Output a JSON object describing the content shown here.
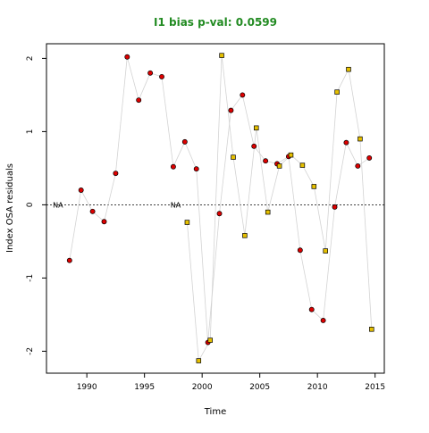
{
  "chart_data": {
    "type": "scatter",
    "title": "I1 bias p-val: 0.0599",
    "title_color": "#228B22",
    "xlabel": "Time",
    "ylabel": "Index OSA residuals",
    "xlim": [
      1986.5,
      2015.8
    ],
    "ylim": [
      -2.3,
      2.2
    ],
    "xticks": [
      1990,
      1995,
      2000,
      2005,
      2010,
      2015
    ],
    "yticks": [
      -2,
      -1,
      0,
      1,
      2
    ],
    "reference_line": 0,
    "line_color": "#d3d3d3",
    "series": [
      {
        "marker": "circle",
        "fill": "#dd0000",
        "na_label": "NA",
        "na_at": 1987.5,
        "x": [
          1988.5,
          1989.5,
          1990.5,
          1991.5,
          1992.5,
          1993.5,
          1994.5,
          1995.5,
          1996.5,
          1997.5,
          1998.5,
          1999.5,
          2000.5,
          2001.5,
          2002.5,
          2003.5,
          2004.5,
          2005.5,
          2006.5,
          2007.5,
          2008.5,
          2009.5,
          2010.5,
          2011.5,
          2012.5,
          2013.5,
          2014.5
        ],
        "y": [
          -0.76,
          0.2,
          -0.09,
          -0.23,
          0.43,
          2.02,
          1.43,
          1.8,
          1.75,
          0.52,
          0.86,
          0.49,
          -1.88,
          -0.12,
          1.29,
          1.5,
          0.8,
          0.6,
          0.56,
          0.66,
          -0.62,
          -1.43,
          -1.58,
          -0.03,
          0.85,
          0.53,
          0.64
        ]
      },
      {
        "marker": "square",
        "fill": "#e6c000",
        "na_label": "NA",
        "na_at": 1997.7,
        "x": [
          1998.7,
          1999.7,
          2000.7,
          2001.7,
          2002.7,
          2003.7,
          2004.7,
          2005.7,
          2006.7,
          2007.7,
          2008.7,
          2009.7,
          2010.7,
          2011.7,
          2012.7,
          2013.7,
          2014.7
        ],
        "y": [
          -0.24,
          -2.13,
          -1.85,
          2.04,
          0.65,
          -0.42,
          1.05,
          -0.1,
          0.53,
          0.68,
          0.54,
          0.25,
          -0.63,
          1.54,
          1.85,
          0.9,
          -1.7
        ]
      }
    ]
  }
}
